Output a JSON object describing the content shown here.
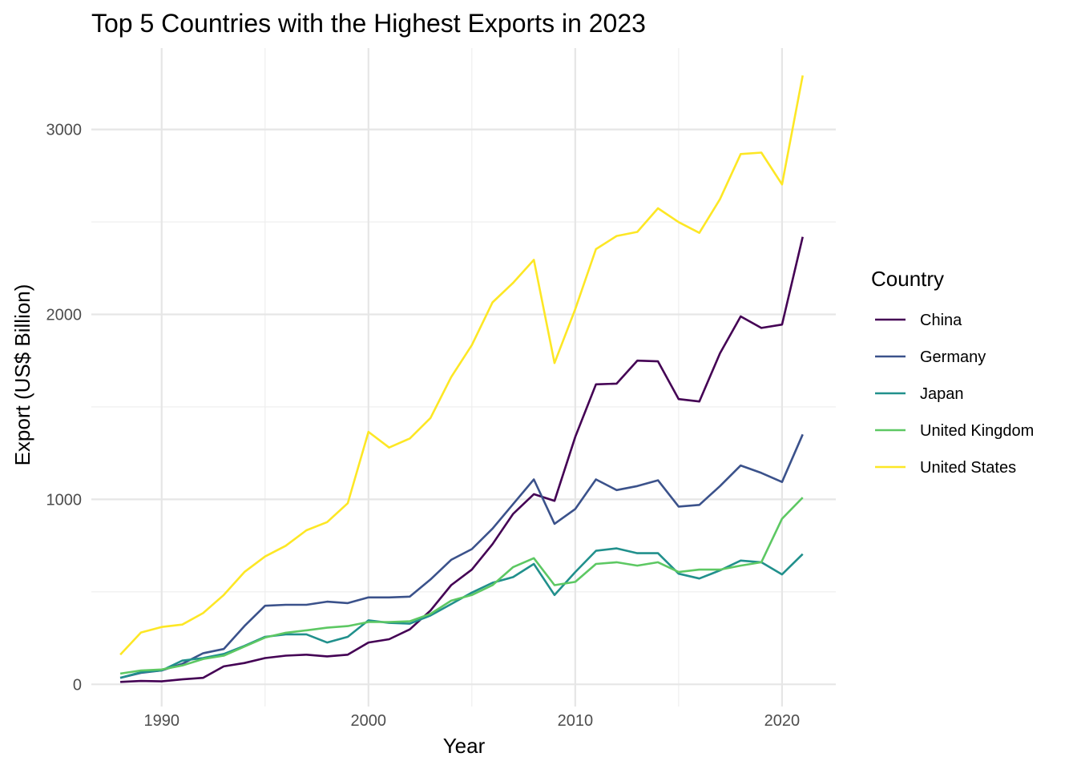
{
  "chart_data": {
    "type": "line",
    "title": "Top 5 Countries with the Highest Exports in 2023",
    "xlabel": "Year",
    "ylabel": "Export (US$ Billion)",
    "xlim": [
      1986.6,
      2022.6
    ],
    "ylim": [
      -120,
      3440
    ],
    "x_ticks": [
      1990,
      2000,
      2010,
      2020
    ],
    "x_tick_labels": [
      "1990",
      "2000",
      "2010",
      "2020"
    ],
    "x_minor_ticks": [
      1995,
      2005,
      2015
    ],
    "y_ticks": [
      0,
      1000,
      2000,
      3000
    ],
    "y_tick_labels": [
      "0",
      "1000",
      "2000",
      "3000"
    ],
    "y_minor_ticks": [
      500,
      1500,
      2500
    ],
    "grid": true,
    "legend": {
      "title": "Country",
      "position": "right"
    },
    "x": [
      1988,
      1989,
      1990,
      1991,
      1992,
      1993,
      1994,
      1995,
      1996,
      1997,
      1998,
      1999,
      2000,
      2001,
      2002,
      2003,
      2004,
      2005,
      2006,
      2007,
      2008,
      2009,
      2010,
      2011,
      2012,
      2013,
      2014,
      2015,
      2016,
      2017,
      2018,
      2019,
      2020,
      2021
    ],
    "series": [
      {
        "name": "China",
        "color": "#440154",
        "values": [
          13,
          18,
          16,
          27,
          35,
          97,
          115,
          142,
          155,
          160,
          151,
          160,
          226,
          244,
          297,
          399,
          536,
          620,
          758,
          922,
          1028,
          992,
          1338,
          1622,
          1626,
          1750,
          1746,
          1542,
          1529,
          1790,
          1989,
          1927,
          1945,
          2419
        ]
      },
      {
        "name": "Germany",
        "color": "#3B528B",
        "values": [
          35,
          62,
          75,
          111,
          168,
          191,
          315,
          425,
          430,
          430,
          447,
          439,
          470,
          470,
          474,
          567,
          673,
          731,
          842,
          975,
          1108,
          868,
          948,
          1108,
          1050,
          1072,
          1103,
          961,
          970,
          1072,
          1183,
          1143,
          1094,
          1351
        ]
      },
      {
        "name": "Japan",
        "color": "#21908C",
        "values": [
          35,
          66,
          75,
          128,
          142,
          164,
          208,
          257,
          270,
          270,
          226,
          257,
          346,
          332,
          328,
          372,
          434,
          496,
          549,
          580,
          651,
          483,
          607,
          722,
          735,
          709,
          709,
          598,
          572,
          616,
          669,
          660,
          594,
          704
        ]
      },
      {
        "name": "United Kingdom",
        "color": "#5DC863",
        "values": [
          58,
          75,
          80,
          102,
          137,
          155,
          204,
          253,
          279,
          292,
          306,
          315,
          337,
          337,
          341,
          381,
          452,
          483,
          536,
          634,
          682,
          536,
          554,
          651,
          660,
          642,
          660,
          607,
          620,
          620,
          642,
          660,
          895,
          1010
        ]
      },
      {
        "name": "United States",
        "color": "#FDE725",
        "values": [
          160,
          280,
          310,
          323,
          385,
          483,
          607,
          691,
          749,
          833,
          877,
          979,
          1365,
          1280,
          1329,
          1440,
          1661,
          1834,
          2065,
          2171,
          2295,
          1737,
          2029,
          2353,
          2424,
          2446,
          2574,
          2499,
          2441,
          2623,
          2867,
          2875,
          2703,
          3292
        ]
      }
    ]
  }
}
